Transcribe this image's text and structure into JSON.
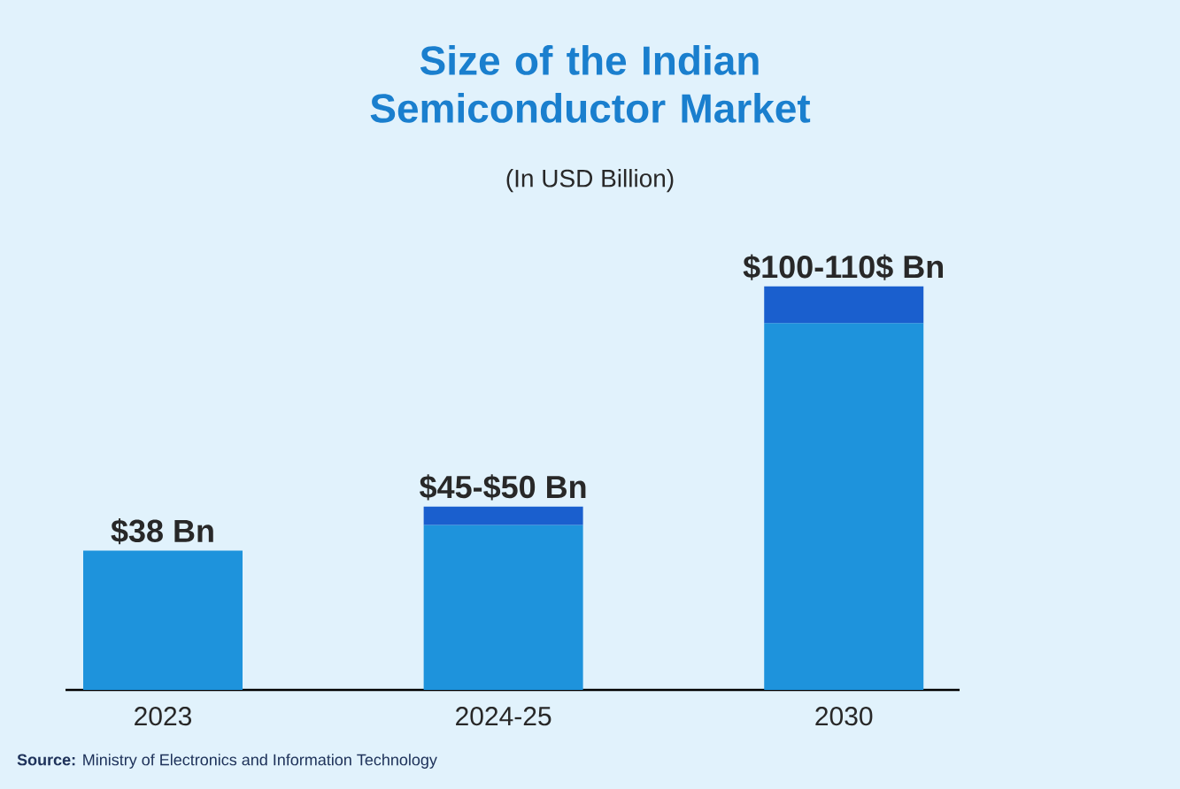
{
  "chart_data": {
    "type": "bar",
    "title": "Size of the Indian Semiconductor Market",
    "subtitle": "(In USD Billion)",
    "categories": [
      "2023",
      "2024-25",
      "2030"
    ],
    "stacked": true,
    "series": [
      {
        "color": "#1e93dc",
        "values": [
          38,
          45,
          100
        ],
        "value_labels": [
          "$38 Bn",
          null,
          null
        ]
      },
      {
        "color": "#1a5fce",
        "values": [
          null,
          5,
          10
        ],
        "value_labels": [
          null,
          "$45-$50 Bn",
          "$100-110$ Bn"
        ]
      }
    ],
    "annotations": [
      "**Source:** Ministry of Electronics and Information Technology"
    ]
  }
}
